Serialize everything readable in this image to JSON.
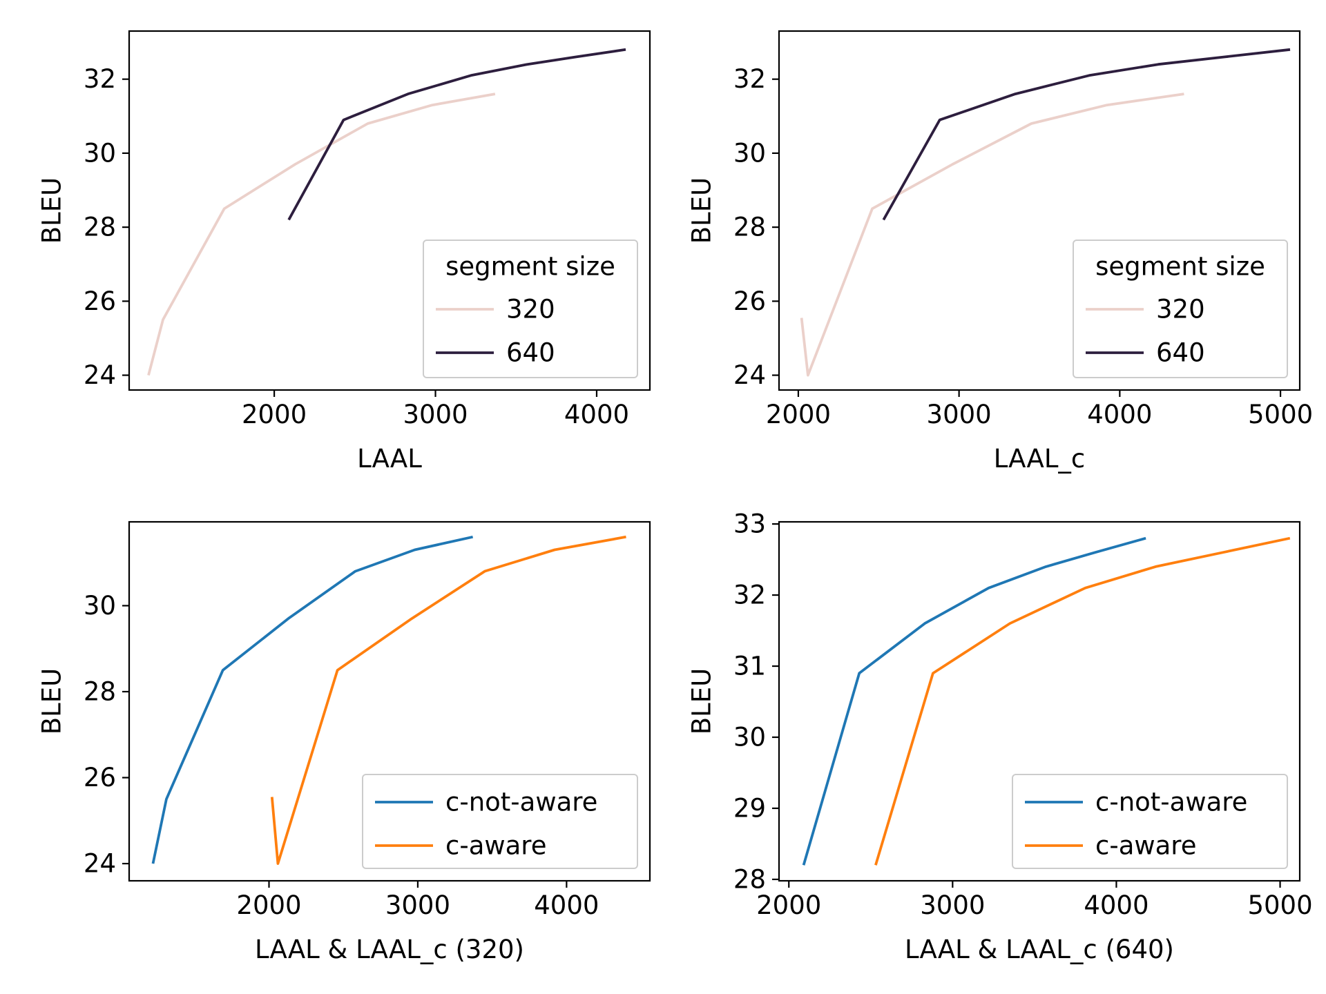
{
  "chart_data": [
    {
      "type": "line",
      "xlabel": "LAAL",
      "ylabel": "BLEU",
      "xlim": [
        1100,
        4330
      ],
      "ylim": [
        23.6,
        33.3
      ],
      "xticks": [
        2000,
        3000,
        4000
      ],
      "yticks": [
        24,
        26,
        28,
        30,
        32
      ],
      "legend": {
        "title": "segment size",
        "position": "lower right"
      },
      "series": [
        {
          "name": "320",
          "color": "#ebd0ca",
          "x": [
            1220,
            1310,
            1690,
            2130,
            2580,
            2980,
            3370
          ],
          "y": [
            24.0,
            25.5,
            28.5,
            29.7,
            30.8,
            31.3,
            31.6
          ]
        },
        {
          "name": "640",
          "color": "#2d1e3e",
          "x": [
            2090,
            2430,
            2830,
            3220,
            3570,
            3870,
            4180
          ],
          "y": [
            28.2,
            30.9,
            31.6,
            32.1,
            32.4,
            32.6,
            32.8
          ]
        }
      ]
    },
    {
      "type": "line",
      "xlabel": "LAAL_c",
      "ylabel": "BLEU",
      "xlim": [
        1880,
        5120
      ],
      "ylim": [
        23.6,
        33.3
      ],
      "xticks": [
        2000,
        3000,
        4000,
        5000
      ],
      "yticks": [
        24,
        26,
        28,
        30,
        32
      ],
      "legend": {
        "title": "segment size",
        "position": "lower right"
      },
      "series": [
        {
          "name": "320",
          "color": "#ebd0ca",
          "x": [
            2020,
            2060,
            2460,
            2960,
            3450,
            3920,
            4400
          ],
          "y": [
            25.55,
            24.0,
            28.5,
            29.7,
            30.8,
            31.3,
            31.6
          ]
        },
        {
          "name": "640",
          "color": "#2d1e3e",
          "x": [
            2530,
            2880,
            3350,
            3810,
            4240,
            4650,
            5060
          ],
          "y": [
            28.2,
            30.9,
            31.6,
            32.1,
            32.4,
            32.6,
            32.8
          ]
        }
      ]
    },
    {
      "type": "line",
      "xlabel": "LAAL & LAAL_c (320)",
      "ylabel": "BLEU",
      "xlim": [
        1060,
        4560
      ],
      "ylim": [
        23.6,
        31.95
      ],
      "xticks": [
        2000,
        3000,
        4000
      ],
      "yticks": [
        24,
        26,
        28,
        30
      ],
      "legend": {
        "title": "",
        "position": "lower right"
      },
      "series": [
        {
          "name": "c-not-aware",
          "color": "#1f77b4",
          "x": [
            1220,
            1310,
            1690,
            2130,
            2580,
            2980,
            3370
          ],
          "y": [
            24.0,
            25.5,
            28.5,
            29.7,
            30.8,
            31.3,
            31.6
          ]
        },
        {
          "name": "c-aware",
          "color": "#ff7f0e",
          "x": [
            2020,
            2060,
            2460,
            2960,
            3450,
            3920,
            4400
          ],
          "y": [
            25.55,
            24.0,
            28.5,
            29.7,
            30.8,
            31.3,
            31.6
          ]
        }
      ]
    },
    {
      "type": "line",
      "xlabel": "LAAL & LAAL_c (640)",
      "ylabel": "BLEU",
      "xlim": [
        1940,
        5120
      ],
      "ylim": [
        27.98,
        33.03
      ],
      "xticks": [
        2000,
        3000,
        4000,
        5000
      ],
      "yticks": [
        28,
        29,
        30,
        31,
        32,
        33
      ],
      "legend": {
        "title": "",
        "position": "lower right"
      },
      "series": [
        {
          "name": "c-not-aware",
          "color": "#1f77b4",
          "x": [
            2090,
            2430,
            2830,
            3220,
            3570,
            3870,
            4180
          ],
          "y": [
            28.2,
            30.9,
            31.6,
            32.1,
            32.4,
            32.6,
            32.8
          ]
        },
        {
          "name": "c-aware",
          "color": "#ff7f0e",
          "x": [
            2530,
            2880,
            3350,
            3810,
            4240,
            4650,
            5060
          ],
          "y": [
            28.2,
            30.9,
            31.6,
            32.1,
            32.4,
            32.6,
            32.8
          ]
        }
      ]
    }
  ]
}
